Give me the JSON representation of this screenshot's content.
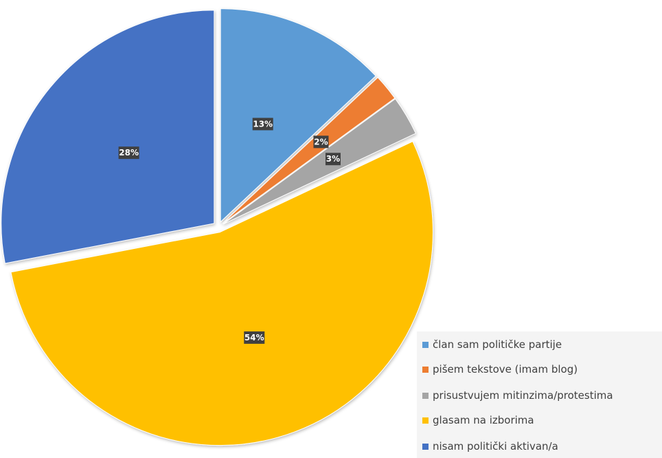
{
  "chart_data": {
    "type": "pie",
    "title": "",
    "series": [
      {
        "name": "član sam političke partije",
        "value": 13,
        "label": "13%",
        "color": "#5b9bd5"
      },
      {
        "name": "pišem tekstove (imam blog)",
        "value": 2,
        "label": "2%",
        "color": "#ed7d31"
      },
      {
        "name": "prisustvujem mitinzima/protestima",
        "value": 3,
        "label": "3%",
        "color": "#a5a5a5"
      },
      {
        "name": "glasam na izborima",
        "value": 54,
        "label": "54%",
        "color": "#ffc000"
      },
      {
        "name": "nisam politički aktivan/a",
        "value": 28,
        "label": "28%",
        "color": "#4472c4"
      }
    ],
    "legend": "bottom-right",
    "exploded": true,
    "start_angle_deg": 0,
    "direction": "clockwise"
  }
}
